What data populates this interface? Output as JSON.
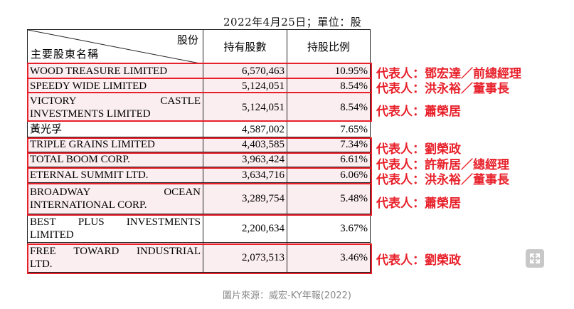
{
  "date_line": "2022年4月25日；單位：股",
  "header": {
    "top": "股份",
    "bottom": "主要股東名稱",
    "shares": "持有股數",
    "ratio": "持股比例"
  },
  "rows": [
    {
      "name_lines": [
        "WOOD TREASURE LIMITED"
      ],
      "shares": "6,570,463",
      "ratio": "10.95%"
    },
    {
      "name_lines": [
        "SPEEDY WIDE LIMITED"
      ],
      "shares": "5,124,051",
      "ratio": "8.54%"
    },
    {
      "name_lines": [
        "VICTORY CASTLE",
        "INVESTMENTS LIMITED"
      ],
      "shares": "5,124,051",
      "ratio": "8.54%"
    },
    {
      "name_lines": [
        "黃光孚"
      ],
      "shares": "4,587,002",
      "ratio": "7.65%"
    },
    {
      "name_lines": [
        "TRIPLE GRAINS LIMITED"
      ],
      "shares": "4,403,585",
      "ratio": "7.34%"
    },
    {
      "name_lines": [
        "TOTAL BOOM CORP."
      ],
      "shares": "3,963,424",
      "ratio": "6.61%"
    },
    {
      "name_lines": [
        "ETERNAL SUMMIT LTD."
      ],
      "shares": "3,634,716",
      "ratio": "6.06%"
    },
    {
      "name_lines": [
        "BROADWAY OCEAN",
        "INTERNATIONAL CORP."
      ],
      "shares": "3,289,754",
      "ratio": "5.48%"
    },
    {
      "name_lines": [
        "BEST PLUS INVESTMENTS",
        "LIMITED"
      ],
      "shares": "2,200,634",
      "ratio": "3.67%"
    },
    {
      "name_lines": [
        "FREE TOWARD INDUSTRIAL",
        "LTD."
      ],
      "shares": "2,073,513",
      "ratio": "3.46%"
    }
  ],
  "representatives": [
    "代表人：鄧宏達／前總經理",
    "代表人：洪永裕／董事長",
    "代表人：蕭榮居",
    "代表人：劉榮政",
    "代表人：許新居／總經理",
    "代表人：洪永裕／董事長",
    "代表人：蕭榮居",
    "代表人：劉榮政"
  ],
  "caption": "圖片來源：威宏-KY年報(2022)",
  "colors": {
    "highlight": "#e8202a",
    "row_tint": "#fbeef0"
  },
  "icons": {
    "expand": "expand-icon"
  }
}
